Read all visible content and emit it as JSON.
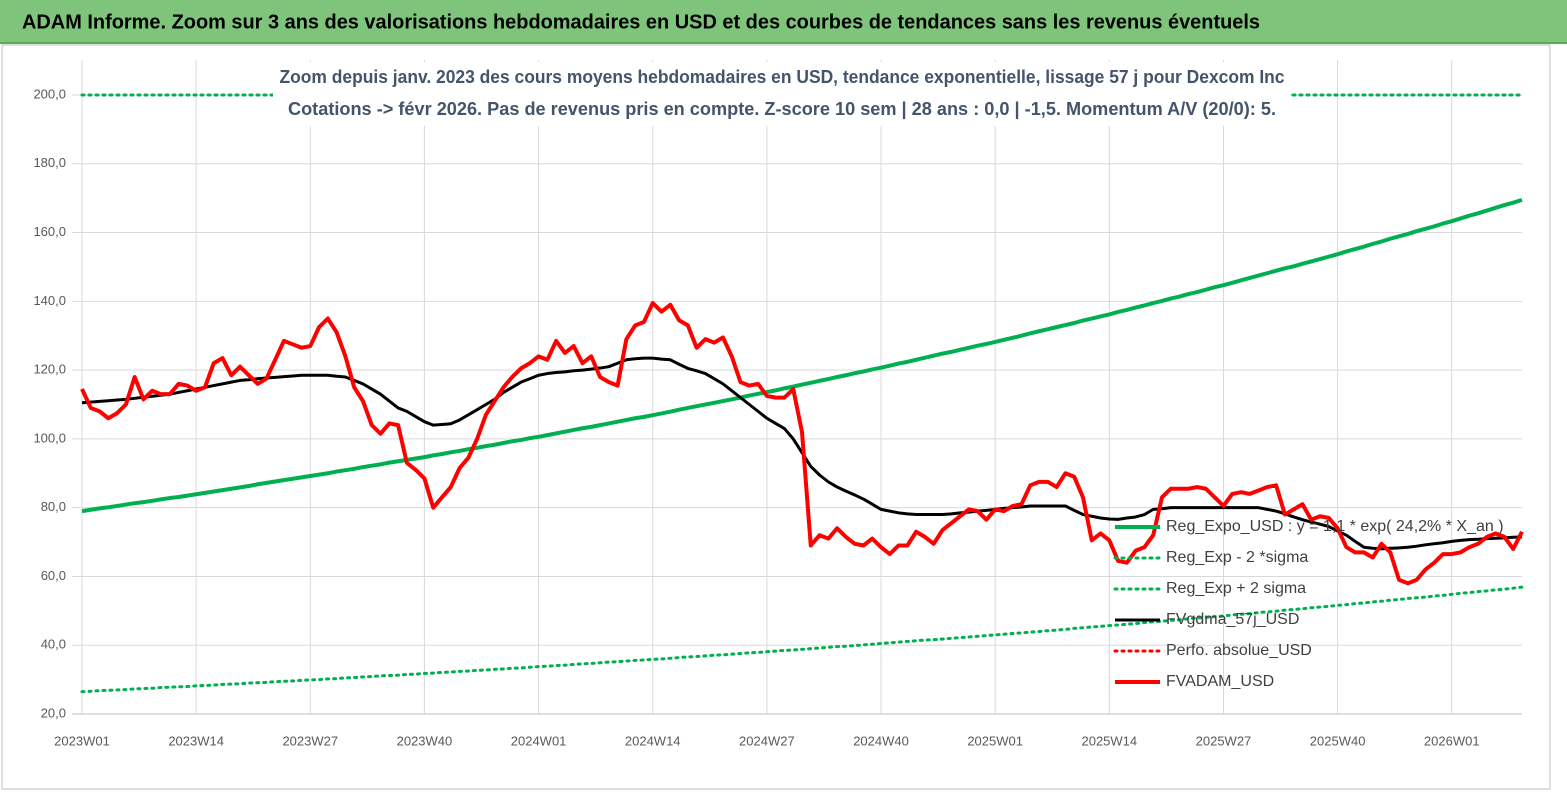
{
  "chart_data": {
    "type": "line",
    "title": "ADAM Informe. Zoom sur 3 ans des valorisations hebdomadaires en USD et des courbes de tendances sans les revenus éventuels",
    "subtitle": [
      "Zoom depuis janv. 2023 des cours moyens hebdomadaires en USD, tendance exponentielle, lissage 57 j pour Dexcom Inc",
      "Cotations -> févr 2026. Pas de revenus pris en compte. Z-score 10 sem  | 28 ans : 0,0 | -1,5. Momentum A/V (20/0): 5."
    ],
    "categories": [
      "2023W01",
      null,
      null,
      null,
      null,
      null,
      null,
      null,
      null,
      null,
      null,
      null,
      null,
      "2023W14",
      null,
      null,
      null,
      null,
      null,
      null,
      null,
      null,
      null,
      null,
      null,
      null,
      "2023W27",
      null,
      null,
      null,
      null,
      null,
      null,
      null,
      null,
      null,
      null,
      null,
      null,
      "2023W40",
      null,
      null,
      null,
      null,
      null,
      null,
      null,
      null,
      null,
      null,
      null,
      null,
      "2024W01",
      null,
      null,
      null,
      null,
      null,
      null,
      null,
      null,
      null,
      null,
      null,
      null,
      "2024W14",
      null,
      null,
      null,
      null,
      null,
      null,
      null,
      null,
      null,
      null,
      null,
      null,
      "2024W27",
      null,
      null,
      null,
      null,
      null,
      null,
      null,
      null,
      null,
      null,
      null,
      null,
      "2024W40",
      null,
      null,
      null,
      null,
      null,
      null,
      null,
      null,
      null,
      null,
      null,
      null,
      "2025W01",
      null,
      null,
      null,
      null,
      null,
      null,
      null,
      null,
      null,
      null,
      null,
      null,
      "2025W14",
      null,
      null,
      null,
      null,
      null,
      null,
      null,
      null,
      null,
      null,
      null,
      null,
      "2025W27",
      null,
      null,
      null,
      null,
      null,
      null,
      null,
      null,
      null,
      null,
      null,
      null,
      "2025W40",
      null,
      null,
      null,
      null,
      null,
      null,
      null,
      null,
      null,
      null,
      null,
      null,
      "2026W01",
      null,
      null,
      null,
      null,
      null,
      null,
      null,
      null
    ],
    "ylim": [
      20,
      200
    ],
    "yticks": [
      {
        "value": 20,
        "label": "20,0"
      },
      {
        "value": 40,
        "label": "40,0"
      },
      {
        "value": 60,
        "label": "60,0"
      },
      {
        "value": 80,
        "label": "80,0"
      },
      {
        "value": 100,
        "label": "100,0"
      },
      {
        "value": 120,
        "label": "120,0"
      },
      {
        "value": 140,
        "label": "140,0"
      },
      {
        "value": 160,
        "label": "160,0"
      },
      {
        "value": 180,
        "label": "180,0"
      },
      {
        "value": 200,
        "label": "200,0"
      }
    ],
    "grid": true,
    "legend": "right",
    "series": [
      {
        "name": "Reg_Expo_USD : y = 1,1 * exp( 24,2% *  X_an )",
        "color": "#00b050",
        "dash": false,
        "values": [
          79.0,
          79.4,
          79.8,
          80.1,
          80.5,
          80.9,
          81.3,
          81.6,
          82.0,
          82.4,
          82.8,
          83.1,
          83.5,
          83.9,
          84.3,
          84.7,
          85.1,
          85.5,
          85.9,
          86.3,
          86.8,
          87.2,
          87.6,
          88.0,
          88.4,
          88.8,
          89.2,
          89.6,
          90.0,
          90.5,
          90.9,
          91.3,
          91.8,
          92.2,
          92.6,
          93.1,
          93.5,
          93.9,
          94.3,
          94.7,
          95.2,
          95.6,
          96.1,
          96.5,
          97.0,
          97.4,
          97.9,
          98.3,
          98.8,
          99.3,
          99.7,
          100.2,
          100.6,
          101.1,
          101.6,
          102.1,
          102.6,
          103.1,
          103.5,
          104.0,
          104.5,
          105.0,
          105.5,
          106.0,
          106.4,
          106.9,
          107.4,
          107.9,
          108.5,
          109.0,
          109.5,
          110.0,
          110.5,
          111.0,
          111.5,
          112.0,
          112.6,
          113.1,
          113.6,
          114.1,
          114.7,
          115.2,
          115.8,
          116.3,
          116.9,
          117.4,
          118.0,
          118.5,
          119.1,
          119.6,
          120.2,
          120.7,
          121.3,
          121.9,
          122.4,
          123.0,
          123.6,
          124.2,
          124.8,
          125.3,
          125.9,
          126.5,
          127.1,
          127.6,
          128.2,
          128.8,
          129.4,
          130.0,
          130.7,
          131.3,
          131.9,
          132.5,
          133.1,
          133.7,
          134.4,
          135.0,
          135.6,
          136.2,
          136.9,
          137.5,
          138.2,
          138.8,
          139.5,
          140.1,
          140.8,
          141.4,
          142.1,
          142.7,
          143.4,
          144.1,
          144.7,
          145.4,
          146.1,
          146.8,
          147.5,
          148.2,
          148.9,
          149.6,
          150.2,
          150.9,
          151.6,
          152.3,
          153.0,
          153.7,
          154.5,
          155.2,
          155.9,
          156.7,
          157.4,
          158.2,
          158.9,
          159.6,
          160.4,
          161.1,
          161.8,
          162.6,
          163.3,
          164.1,
          164.9,
          165.6,
          166.4,
          167.2,
          168.0,
          168.7,
          169.5
        ]
      },
      {
        "name": "Reg_Exp - 2 *sigma",
        "color": "#00b050",
        "dash": true,
        "values": [
          26.5,
          26.6,
          26.8,
          26.9,
          27.0,
          27.1,
          27.3,
          27.4,
          27.5,
          27.7,
          27.8,
          27.9,
          28.0,
          28.2,
          28.3,
          28.4,
          28.6,
          28.7,
          28.8,
          29.0,
          29.1,
          29.2,
          29.4,
          29.5,
          29.6,
          29.8,
          29.9,
          30.0,
          30.2,
          30.3,
          30.5,
          30.6,
          30.8,
          30.9,
          31.1,
          31.2,
          31.3,
          31.5,
          31.6,
          31.8,
          31.9,
          32.1,
          32.2,
          32.4,
          32.5,
          32.7,
          32.8,
          33.0,
          33.1,
          33.3,
          33.4,
          33.6,
          33.8,
          33.9,
          34.1,
          34.2,
          34.4,
          34.6,
          34.7,
          34.9,
          35.1,
          35.2,
          35.4,
          35.6,
          35.7,
          35.9,
          36.0,
          36.2,
          36.4,
          36.6,
          36.7,
          36.9,
          37.1,
          37.2,
          37.4,
          37.6,
          37.8,
          37.9,
          38.1,
          38.3,
          38.5,
          38.6,
          38.8,
          39.0,
          39.2,
          39.4,
          39.6,
          39.7,
          39.9,
          40.1,
          40.3,
          40.5,
          40.7,
          40.9,
          41.1,
          41.3,
          41.5,
          41.6,
          41.8,
          42.0,
          42.2,
          42.4,
          42.6,
          42.8,
          43.0,
          43.2,
          43.4,
          43.6,
          43.8,
          44.0,
          44.2,
          44.4,
          44.6,
          44.9,
          45.1,
          45.3,
          45.5,
          45.7,
          45.9,
          46.1,
          46.3,
          46.6,
          46.8,
          47.0,
          47.2,
          47.4,
          47.7,
          47.9,
          48.1,
          48.3,
          48.5,
          48.8,
          49.0,
          49.2,
          49.5,
          49.7,
          49.9,
          50.2,
          50.4,
          50.6,
          50.9,
          51.1,
          51.3,
          51.6,
          51.8,
          52.1,
          52.3,
          52.6,
          52.8,
          53.1,
          53.3,
          53.6,
          53.8,
          54.0,
          54.3,
          54.5,
          54.8,
          55.1,
          55.3,
          55.6,
          55.8,
          56.1,
          56.3,
          56.6,
          56.9
        ]
      },
      {
        "name": "Reg_Exp + 2 sigma",
        "color": "#00b050",
        "dash": true,
        "values": [
          200,
          200,
          200,
          200,
          200,
          200,
          200,
          200,
          200,
          200,
          200,
          200,
          200,
          200,
          200,
          200,
          200,
          200,
          200,
          200,
          200,
          200,
          200,
          200,
          200,
          200,
          200,
          200,
          200,
          200,
          200,
          200,
          200,
          200,
          200,
          200,
          200,
          200,
          200,
          200,
          200,
          200,
          200,
          200,
          200,
          200,
          200,
          200,
          200,
          200,
          200,
          200,
          200,
          200,
          200,
          200,
          200,
          200,
          200,
          200,
          200,
          200,
          200,
          200,
          200,
          200,
          200,
          200,
          200,
          200,
          200,
          200,
          200,
          200,
          200,
          200,
          200,
          200,
          200,
          200,
          200,
          200,
          200,
          200,
          200,
          200,
          200,
          200,
          200,
          200,
          200,
          200,
          200,
          200,
          200,
          200,
          200,
          200,
          200,
          200,
          200,
          200,
          200,
          200,
          200,
          200,
          200,
          200,
          200,
          200,
          200,
          200,
          200,
          200,
          200,
          200,
          200,
          200,
          200,
          200,
          200,
          200,
          200,
          200,
          200,
          200,
          200,
          200,
          200,
          200,
          200,
          200,
          200,
          200,
          200,
          200,
          200,
          200,
          200,
          200,
          200,
          200,
          200,
          200,
          200,
          200,
          200,
          200,
          200,
          200,
          200,
          200,
          200,
          200,
          200,
          200,
          200,
          200,
          200,
          200,
          200,
          200,
          200,
          200,
          200
        ]
      },
      {
        "name": "FVgdma_57j_USD",
        "color": "#000000",
        "dash": false,
        "values": [
          110.5,
          110.7,
          110.9,
          111.1,
          111.3,
          111.5,
          111.8,
          112.1,
          112.4,
          112.7,
          113,
          113.5,
          114,
          114.5,
          115,
          115.5,
          116,
          116.5,
          117,
          117.2,
          117.5,
          117.7,
          117.9,
          118.1,
          118.3,
          118.5,
          118.5,
          118.5,
          118.5,
          118.2,
          118,
          117,
          116,
          114.5,
          113,
          111,
          109,
          108,
          106.5,
          105,
          104,
          104.2,
          104.4,
          105.5,
          107,
          108.5,
          110,
          111.5,
          113.5,
          115,
          116.5,
          117.5,
          118.5,
          119,
          119.3,
          119.5,
          119.8,
          120,
          120.3,
          120.6,
          121,
          122,
          123,
          123.3,
          123.5,
          123.5,
          123.2,
          123,
          121.7,
          120.5,
          119.8,
          119,
          117.5,
          116,
          114,
          112,
          110,
          108,
          106,
          104.5,
          103,
          100,
          96,
          92,
          89.5,
          87.5,
          86,
          84.8,
          83.7,
          82.5,
          81,
          79.5,
          79,
          78.5,
          78.2,
          78,
          78,
          78,
          78,
          78.2,
          78.5,
          78.7,
          79,
          79.2,
          79.5,
          79.8,
          80,
          80.2,
          80.5,
          80.5,
          80.5,
          80.5,
          80.5,
          79.2,
          78,
          77.5,
          77,
          76.7,
          76.6,
          77,
          77.3,
          78,
          79.5,
          79.7,
          80,
          80,
          80,
          80,
          80,
          80,
          80,
          80,
          80,
          80,
          80,
          79.5,
          79,
          78.2,
          77.3,
          76.5,
          75.8,
          75.2,
          74.5,
          73.2,
          72,
          70.2,
          68.5,
          68.2,
          68,
          68.2,
          68.3,
          68.5,
          68.8,
          69.2,
          69.5,
          69.8,
          70.2,
          70.5,
          70.7,
          70.8,
          71,
          71.1,
          71.2,
          71.4,
          71.5
        ]
      },
      {
        "name": "Perfo. absolue_USD",
        "color": "#ff0000",
        "dash": true,
        "values": [
          null,
          null,
          null,
          null,
          null,
          null,
          null,
          null,
          null,
          null,
          null,
          null,
          null,
          null,
          null,
          null,
          null,
          null,
          null,
          null,
          null,
          null,
          null,
          null,
          null,
          null,
          null,
          null,
          null,
          null,
          null,
          null,
          null,
          null,
          null,
          null,
          null,
          null,
          null,
          null,
          null,
          null,
          null,
          null,
          null,
          null,
          null,
          null,
          null,
          null,
          null,
          null,
          null,
          null,
          null,
          null,
          null,
          null,
          null,
          null,
          null,
          null,
          null,
          null,
          null,
          null,
          null,
          null,
          null,
          null,
          null,
          null,
          null,
          null,
          null,
          null,
          null,
          null,
          null,
          null,
          null,
          null,
          null,
          null,
          null,
          null,
          null,
          null,
          null,
          null,
          null,
          null,
          null,
          null,
          null,
          null,
          null,
          null,
          null,
          null,
          null,
          null,
          null,
          null,
          null,
          null,
          null,
          null,
          null,
          null,
          null,
          null,
          null,
          null,
          null,
          null,
          null,
          null,
          null,
          null,
          null,
          null,
          null,
          null,
          null,
          null,
          null,
          null,
          null,
          null,
          null,
          null,
          null,
          null,
          null,
          null,
          null,
          null,
          null,
          null,
          null,
          null,
          null,
          null,
          null,
          null,
          null,
          null,
          null,
          null,
          null,
          null,
          null,
          null,
          null,
          null,
          null,
          null,
          null,
          null,
          null,
          null,
          null,
          null,
          null
        ]
      },
      {
        "name": "FVADAM_USD",
        "color": "#ff0000",
        "dash": false,
        "values": [
          114.5,
          109,
          108,
          106,
          107.5,
          110,
          118,
          111.5,
          114,
          113,
          113,
          116,
          115.5,
          114,
          115,
          122,
          123.5,
          118.5,
          121,
          118.5,
          116,
          117.5,
          123,
          128.5,
          127.5,
          126.5,
          127,
          132.5,
          135,
          131,
          124,
          115,
          111,
          104,
          101.5,
          104.5,
          104,
          93,
          91,
          88.5,
          80,
          83,
          86,
          91.5,
          94.5,
          100,
          107,
          111,
          115,
          118,
          120.5,
          122,
          124,
          123,
          128.5,
          125,
          127,
          122,
          124,
          118,
          116.5,
          115.5,
          129,
          133,
          134,
          139.5,
          137,
          139,
          134.5,
          133,
          126.5,
          129,
          128,
          129.5,
          124,
          116.5,
          115.5,
          116,
          112.5,
          112,
          112,
          114.5,
          102,
          69,
          72,
          71,
          74,
          71.5,
          69.5,
          69,
          71,
          68.5,
          66.5,
          69,
          69,
          73,
          71.5,
          69.5,
          73.5,
          75.5,
          77.5,
          79.5,
          79,
          76.5,
          79.5,
          79,
          80.5,
          81,
          86.5,
          87.5,
          87.5,
          86,
          90,
          89,
          83,
          70.5,
          72.5,
          70.5,
          64.5,
          64,
          67.5,
          68.5,
          72,
          83,
          85.5,
          85.5,
          85.5,
          86,
          85.5,
          83,
          80.5,
          84,
          84.5,
          84,
          85,
          86,
          86.5,
          78,
          79.5,
          81,
          76.5,
          77.5,
          77,
          74,
          68.5,
          67,
          67,
          65.5,
          69.5,
          67,
          59,
          58,
          59,
          62,
          64,
          66.5,
          66.5,
          67,
          68.5,
          69.5,
          71.5,
          72.5,
          71.5,
          68,
          73
        ]
      }
    ]
  }
}
